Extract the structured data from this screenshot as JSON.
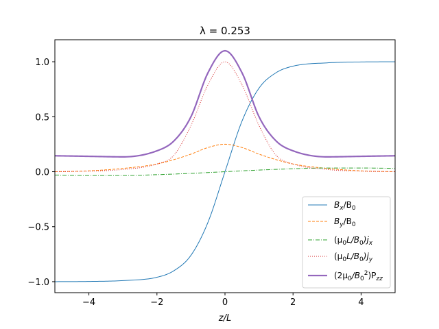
{
  "chart_data": {
    "type": "line",
    "title": "λ = 0.253",
    "xlabel": "z/L",
    "ylabel": "",
    "xlim": [
      -5,
      5
    ],
    "ylim": [
      -1.1,
      1.2
    ],
    "xticks": [
      -4,
      -2,
      0,
      2,
      4
    ],
    "xtick_labels": [
      "−4",
      "−2",
      "0",
      "2",
      "4"
    ],
    "yticks": [
      -1.0,
      -0.5,
      0.0,
      0.5,
      1.0
    ],
    "ytick_labels": [
      "−1.0",
      "−0.5",
      "0.0",
      "0.5",
      "1.0"
    ],
    "grid": false,
    "legend_position": "lower-right",
    "series": [
      {
        "name": "Bx/B0",
        "color": "#1f77b4",
        "style": "solid",
        "width": 1,
        "x": [
          -5,
          -4,
          -3,
          -2,
          -1.5,
          -1,
          -0.5,
          0,
          0.5,
          1,
          1.5,
          2,
          3,
          4,
          5
        ],
        "y": [
          -1.0,
          -0.998,
          -0.99,
          -0.96,
          -0.9,
          -0.76,
          -0.46,
          0.0,
          0.46,
          0.76,
          0.9,
          0.96,
          0.99,
          0.998,
          1.0
        ]
      },
      {
        "name": "By/B0",
        "color": "#ff7f0e",
        "style": "dashed",
        "width": 1,
        "x": [
          -5,
          -4,
          -3,
          -2,
          -1.5,
          -1,
          -0.5,
          0,
          0.5,
          1,
          1.5,
          2,
          3,
          4,
          5
        ],
        "y": [
          0.0,
          0.008,
          0.03,
          0.07,
          0.11,
          0.16,
          0.22,
          0.25,
          0.22,
          0.16,
          0.11,
          0.07,
          0.03,
          0.008,
          0.0
        ]
      },
      {
        "name": "(μ0L/B0)jx",
        "color": "#2ca02c",
        "style": "dashdot",
        "width": 1,
        "x": [
          -5,
          -4,
          -3,
          -2,
          -1,
          0,
          1,
          2,
          3,
          4,
          5
        ],
        "y": [
          -0.03,
          -0.034,
          -0.034,
          -0.027,
          -0.015,
          0.0,
          0.015,
          0.027,
          0.034,
          0.034,
          0.03
        ]
      },
      {
        "name": "(μ0L/B0)jy",
        "color": "#d62728",
        "style": "dotted",
        "width": 1,
        "x": [
          -5,
          -4,
          -3,
          -2,
          -1.5,
          -1,
          -0.5,
          0,
          0.5,
          1,
          1.5,
          2,
          3,
          4,
          5
        ],
        "y": [
          0.0,
          0.005,
          0.02,
          0.07,
          0.15,
          0.42,
          0.79,
          1.0,
          0.79,
          0.42,
          0.15,
          0.07,
          0.02,
          0.005,
          0.0
        ]
      },
      {
        "name": "(2μ0/B0²)Pzz",
        "color": "#9467bd",
        "style": "solid",
        "width": 2.2,
        "x": [
          -5,
          -4,
          -3,
          -2,
          -1.5,
          -1,
          -0.5,
          0,
          0.5,
          1,
          1.5,
          2,
          3,
          4,
          5
        ],
        "y": [
          0.145,
          0.14,
          0.135,
          0.19,
          0.28,
          0.5,
          0.9,
          1.1,
          0.9,
          0.5,
          0.28,
          0.19,
          0.135,
          0.14,
          0.145
        ]
      }
    ]
  },
  "legend_labels": {
    "bx": {
      "main": "B",
      "sub1": "x",
      "rest": "/B",
      "sub2": "0"
    },
    "by": {
      "main": "B",
      "sub1": "y",
      "rest": "/B",
      "sub2": "0"
    },
    "jx": {
      "p1": "(μ",
      "s1": "0",
      "p2": "L/B",
      "s2": "0",
      "p3": ")j",
      "s3": "x"
    },
    "jy": {
      "p1": "(μ",
      "s1": "0",
      "p2": "L/B",
      "s2": "0",
      "p3": ")j",
      "s3": "y"
    },
    "pzz": {
      "p1": "(2μ",
      "s1": "0",
      "p2": "/B",
      "s2": "0",
      "sup": "2",
      "p3": ")P",
      "s3": "zz"
    }
  }
}
